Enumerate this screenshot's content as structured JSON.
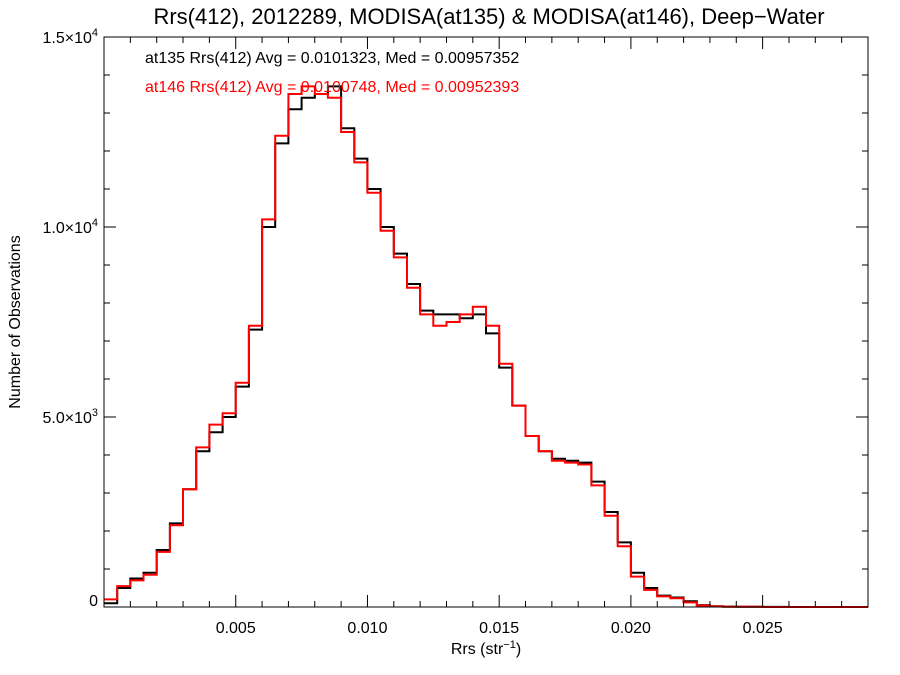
{
  "chart_data": {
    "type": "line",
    "title": "Rrs(412), 2012289, MODISA(at135) & MODISA(at146), Deep−Water",
    "xlabel": "Rrs (str",
    "xlabel_sup": "−1",
    "xlabel_close": ")",
    "ylabel": "Number of Observations",
    "xlim": [
      0.0,
      0.029
    ],
    "ylim": [
      0,
      15000
    ],
    "grid": false,
    "x_ticks": [
      {
        "value": 0.005,
        "label": "0.005"
      },
      {
        "value": 0.01,
        "label": "0.010"
      },
      {
        "value": 0.015,
        "label": "0.015"
      },
      {
        "value": 0.02,
        "label": "0.020"
      },
      {
        "value": 0.025,
        "label": "0.025"
      }
    ],
    "y_ticks": [
      {
        "value": 0,
        "label": "0",
        "sup": ""
      },
      {
        "value": 5000,
        "label": "5.0×10",
        "sup": "3"
      },
      {
        "value": 10000,
        "label": "1.0×10",
        "sup": "4"
      },
      {
        "value": 15000,
        "label": "1.5×10",
        "sup": "4"
      }
    ],
    "annotations": [
      {
        "text": "at135 Rrs(412) Avg = 0.0101323, Med = 0.00957352",
        "color": "#000000"
      },
      {
        "text": "at146 Rrs(412) Avg = 0.0100748, Med = 0.00952393",
        "color": "#ff0000"
      }
    ],
    "series": [
      {
        "name": "at135",
        "color": "#000000",
        "x": [
          0.0,
          0.0005,
          0.001,
          0.0015,
          0.002,
          0.0025,
          0.003,
          0.0035,
          0.004,
          0.0045,
          0.005,
          0.0055,
          0.006,
          0.0065,
          0.007,
          0.0075,
          0.008,
          0.0085,
          0.009,
          0.0095,
          0.01,
          0.0105,
          0.011,
          0.0115,
          0.012,
          0.0125,
          0.013,
          0.0135,
          0.014,
          0.0145,
          0.015,
          0.0155,
          0.016,
          0.0165,
          0.017,
          0.0175,
          0.018,
          0.0185,
          0.019,
          0.0195,
          0.02,
          0.0205,
          0.021,
          0.0215,
          0.022,
          0.0225,
          0.023,
          0.0235,
          0.024,
          0.025,
          0.026,
          0.027,
          0.028,
          0.029
        ],
        "values": [
          100,
          500,
          750,
          900,
          1500,
          2200,
          3100,
          4100,
          4600,
          5000,
          5800,
          7300,
          10000,
          12200,
          13100,
          13400,
          13500,
          13700,
          12600,
          11800,
          11000,
          10000,
          9300,
          8500,
          7800,
          7700,
          7700,
          7600,
          7700,
          7200,
          6300,
          5300,
          4500,
          4100,
          3900,
          3850,
          3800,
          3300,
          2500,
          1700,
          900,
          500,
          300,
          250,
          150,
          50,
          20,
          10,
          5,
          2,
          0,
          0,
          0,
          0
        ]
      },
      {
        "name": "at146",
        "color": "#ff0000",
        "x": [
          0.0,
          0.0005,
          0.001,
          0.0015,
          0.002,
          0.0025,
          0.003,
          0.0035,
          0.004,
          0.0045,
          0.005,
          0.0055,
          0.006,
          0.0065,
          0.007,
          0.0075,
          0.008,
          0.0085,
          0.009,
          0.0095,
          0.01,
          0.0105,
          0.011,
          0.0115,
          0.012,
          0.0125,
          0.013,
          0.0135,
          0.014,
          0.0145,
          0.015,
          0.0155,
          0.016,
          0.0165,
          0.017,
          0.0175,
          0.018,
          0.0185,
          0.019,
          0.0195,
          0.02,
          0.0205,
          0.021,
          0.0215,
          0.022,
          0.0225,
          0.023,
          0.0235,
          0.024,
          0.025,
          0.026,
          0.027,
          0.028,
          0.029
        ],
        "values": [
          200,
          550,
          700,
          850,
          1450,
          2150,
          3100,
          4200,
          4800,
          5100,
          5900,
          7400,
          10200,
          12400,
          13500,
          13700,
          13500,
          13400,
          12500,
          11700,
          10900,
          9900,
          9200,
          8400,
          7700,
          7400,
          7500,
          7700,
          7900,
          7400,
          6400,
          5300,
          4500,
          4100,
          3850,
          3800,
          3750,
          3200,
          2400,
          1600,
          800,
          450,
          280,
          230,
          120,
          40,
          15,
          8,
          4,
          1,
          0,
          0,
          0,
          0
        ]
      }
    ]
  }
}
